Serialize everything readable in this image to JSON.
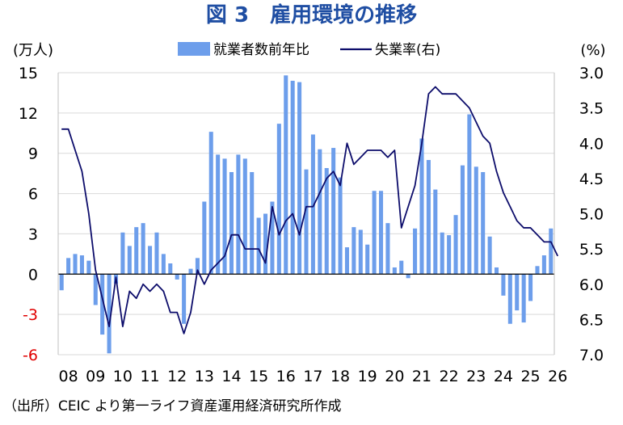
{
  "title": "図 3　雇用環境の推移",
  "source": "（出所）CEIC より第一ライフ資産運用経済研究所作成",
  "colors": {
    "bar": "#6d9eeb",
    "line": "#0d0d6b",
    "negative_tick": "#e00000",
    "grid": "#d9d9d9",
    "title": "#1f4ea3"
  },
  "chart_data": {
    "type": "bar",
    "left_unit": "(万人)",
    "right_unit": "(%)",
    "x_labels": [
      "08",
      "09",
      "10",
      "11",
      "12",
      "13",
      "14",
      "15",
      "16",
      "17",
      "18",
      "19",
      "20",
      "21",
      "22",
      "23",
      "24",
      "25",
      "26"
    ],
    "left_ticks": [
      "15",
      "12",
      "9",
      "6",
      "3",
      "0",
      "-3",
      "-6"
    ],
    "right_ticks": [
      "3.0",
      "3.5",
      "4.0",
      "4.5",
      "5.0",
      "5.5",
      "6.0",
      "6.5",
      "7.0"
    ],
    "ylim_left": [
      -6,
      15
    ],
    "ylim_right": [
      3.0,
      7.0
    ],
    "right_axis_inverted": true,
    "grid": true,
    "legend_position": "top-center",
    "series": [
      {
        "name": "就業者数前年比",
        "type": "bar",
        "axis": "left",
        "start": "2008-01",
        "step": "quarter",
        "values": [
          -1.2,
          1.2,
          1.5,
          1.4,
          1.0,
          -2.3,
          -4.5,
          -5.9,
          -0.7,
          3.1,
          2.1,
          3.5,
          3.8,
          2.1,
          3.1,
          1.5,
          0.8,
          -0.4,
          -3.7,
          0.4,
          1.2,
          5.4,
          10.6,
          8.9,
          8.6,
          7.6,
          8.9,
          8.6,
          7.6,
          4.2,
          4.5,
          5.4,
          11.2,
          14.8,
          14.4,
          14.3,
          7.8,
          10.4,
          9.3,
          7.9,
          9.4,
          7.2,
          2.0,
          3.5,
          3.3,
          2.2,
          6.2,
          6.2,
          3.8,
          0.5,
          1.0,
          -0.3,
          3.4,
          10.1,
          8.5,
          6.3,
          3.1,
          2.9,
          4.4,
          8.1,
          11.9,
          8.0,
          7.6,
          2.8,
          0.5,
          -1.6,
          -3.7,
          -2.7,
          -3.6,
          -2.0,
          0.6,
          1.4,
          3.4
        ]
      },
      {
        "name": "失業率(右)",
        "type": "line",
        "axis": "right",
        "start": "2008-01",
        "step": "quarter",
        "values": [
          3.8,
          3.8,
          4.1,
          4.4,
          5.0,
          5.8,
          6.2,
          6.6,
          5.9,
          6.6,
          6.1,
          6.2,
          6.0,
          6.1,
          6.0,
          6.1,
          6.4,
          6.4,
          6.7,
          6.4,
          5.8,
          6.0,
          5.8,
          5.7,
          5.6,
          5.3,
          5.3,
          5.5,
          5.5,
          5.5,
          5.7,
          4.9,
          5.3,
          5.1,
          5.0,
          5.3,
          4.9,
          4.9,
          4.7,
          4.5,
          4.4,
          4.6,
          4.0,
          4.3,
          4.2,
          4.1,
          4.1,
          4.1,
          4.2,
          4.1,
          5.2,
          4.9,
          4.6,
          4.0,
          3.3,
          3.2,
          3.3,
          3.3,
          3.3,
          3.4,
          3.5,
          3.7,
          3.9,
          4.0,
          4.4,
          4.7,
          4.9,
          5.1,
          5.2,
          5.2,
          5.3,
          5.4,
          5.4,
          5.6
        ]
      }
    ]
  }
}
